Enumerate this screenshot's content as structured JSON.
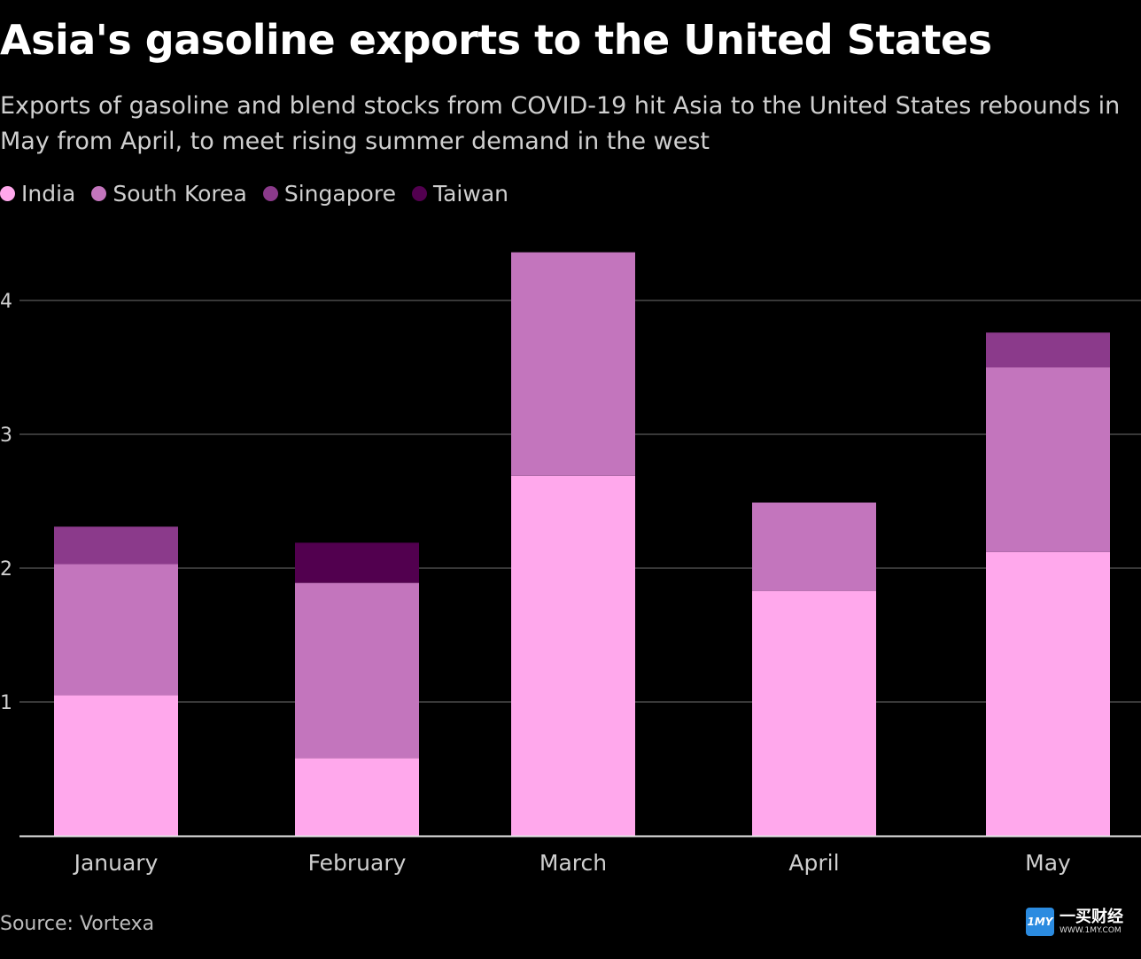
{
  "title": "Asia's gasoline exports to the United States",
  "subtitle": "Exports of gasoline and blend stocks from COVID-19 hit Asia to the United States rebounds in May from April, to meet rising summer demand in the west",
  "source": "Source: Vortexa",
  "watermark": {
    "logo": "1MY",
    "main": "一买财经",
    "sub": "WWW.1MY.COM"
  },
  "chart_data": {
    "type": "bar",
    "stacked": true,
    "title": "Asia's gasoline exports to the United States",
    "xlabel": "",
    "ylabel": "",
    "ylim": [
      0,
      4.4
    ],
    "yticks": [
      1,
      2,
      3,
      4
    ],
    "grid": true,
    "legend_position": "top-left",
    "categories": [
      "January",
      "February",
      "March",
      "April",
      "May"
    ],
    "series": [
      {
        "name": "India",
        "color": "#ffa8ec",
        "values": [
          1.05,
          0.58,
          2.69,
          1.83,
          2.12
        ]
      },
      {
        "name": "South Korea",
        "color": "#c375bd",
        "values": [
          0.98,
          1.31,
          1.67,
          0.66,
          1.38
        ]
      },
      {
        "name": "Singapore",
        "color": "#8b3a8b",
        "values": [
          0.28,
          0,
          0,
          0,
          0.26
        ]
      },
      {
        "name": "Taiwan",
        "color": "#52004f",
        "values": [
          0,
          0.3,
          0,
          0,
          0
        ]
      }
    ]
  }
}
